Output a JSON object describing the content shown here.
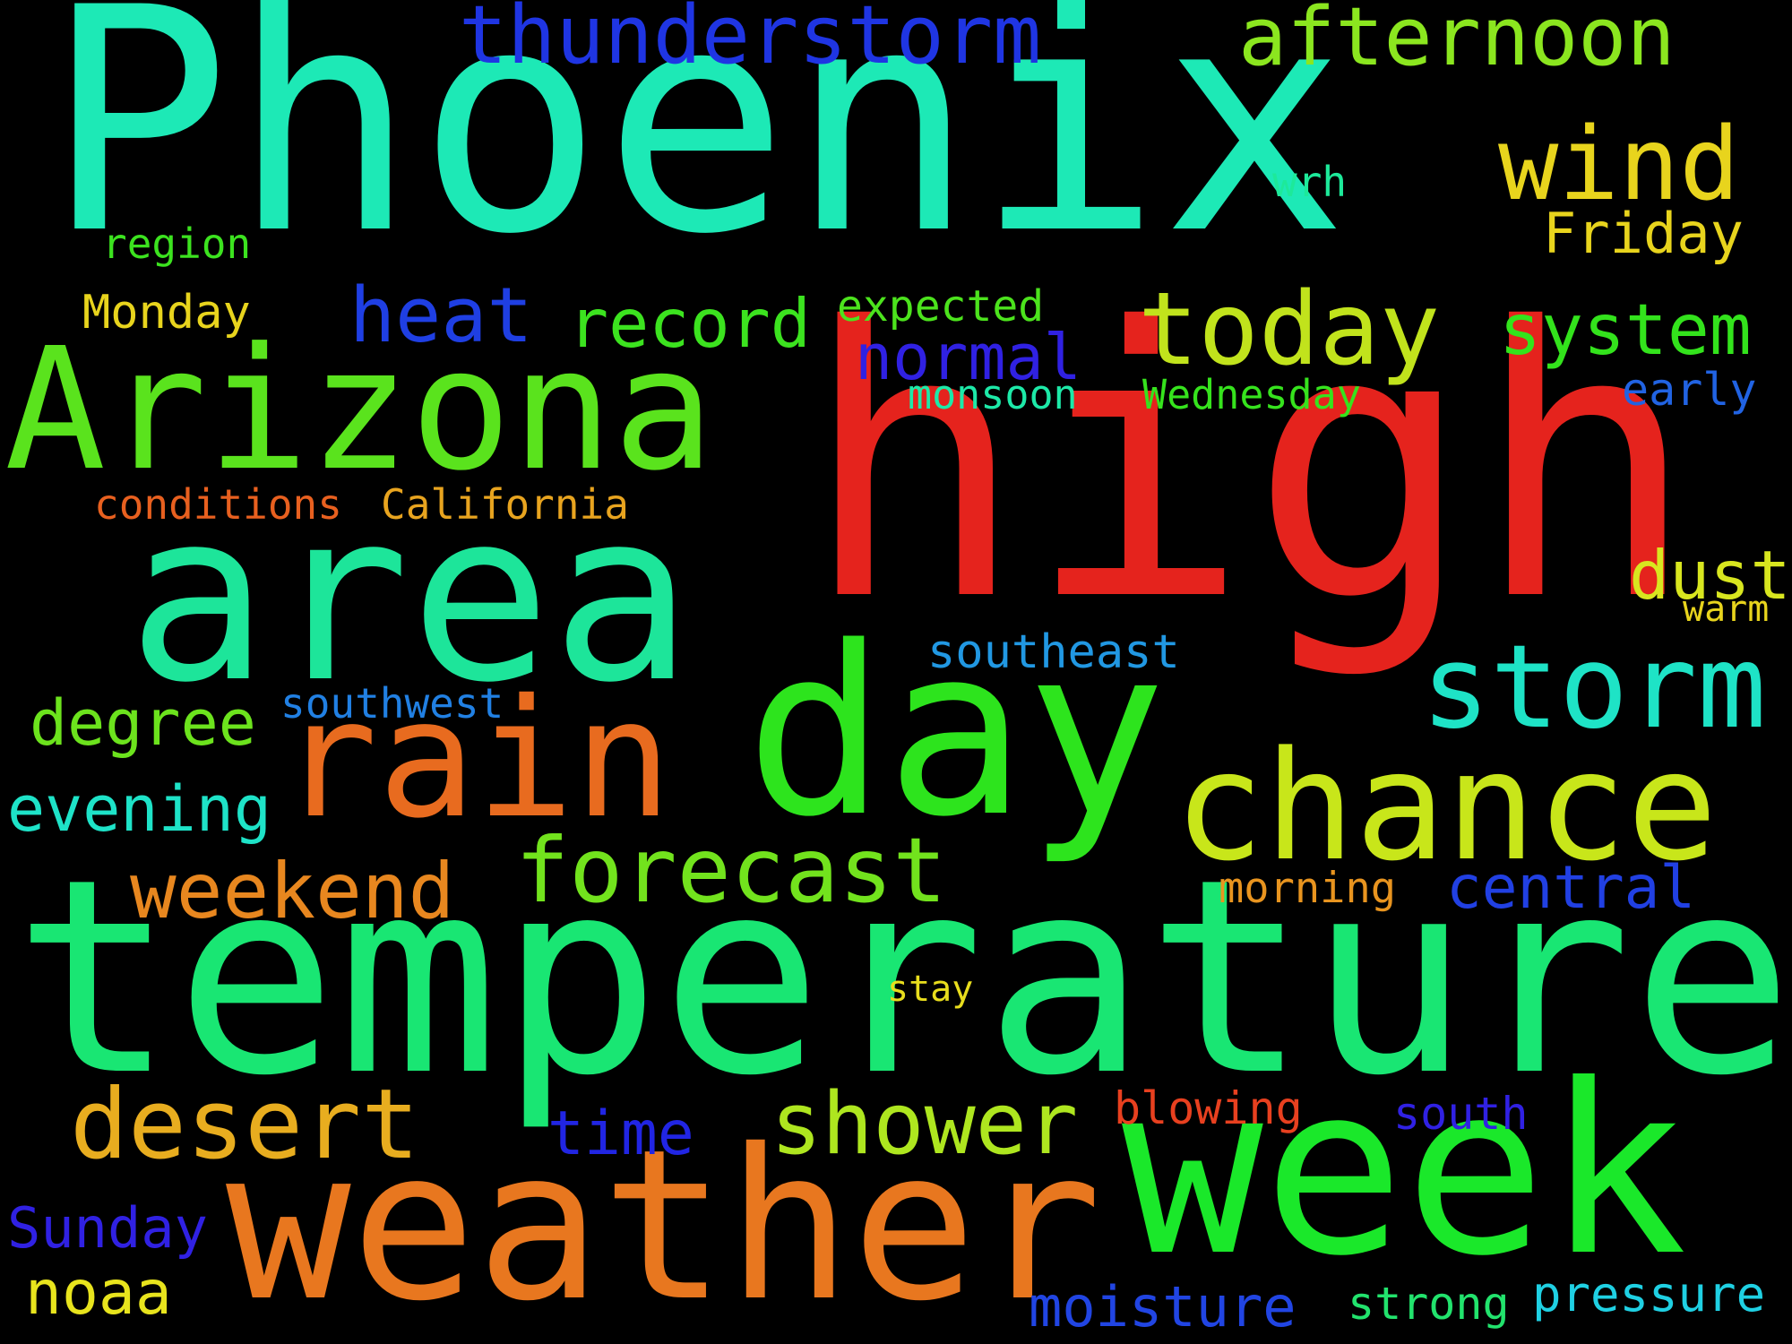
{
  "words": [
    {
      "id": "phoenix",
      "text": "Phoenix",
      "color": "#1de9b6"
    },
    {
      "id": "high",
      "text": "high",
      "color": "#e5231d"
    },
    {
      "id": "temperature",
      "text": "temperature",
      "color": "#19e673"
    },
    {
      "id": "week",
      "text": "week",
      "color": "#1ae82a"
    },
    {
      "id": "weather",
      "text": "weather",
      "color": "#e8771f"
    },
    {
      "id": "area",
      "text": "area",
      "color": "#1de59a"
    },
    {
      "id": "day",
      "text": "day",
      "color": "#2de41d"
    },
    {
      "id": "arizona",
      "text": "Arizona",
      "color": "#5ae31d"
    },
    {
      "id": "rain",
      "text": "rain",
      "color": "#e86b1f"
    },
    {
      "id": "chance",
      "text": "chance",
      "color": "#c8e61a"
    },
    {
      "id": "storm",
      "text": "storm",
      "color": "#1ee3c6"
    },
    {
      "id": "today",
      "text": "today",
      "color": "#c1e31c"
    },
    {
      "id": "wind",
      "text": "wind",
      "color": "#e8d41d"
    },
    {
      "id": "thunderstorm",
      "text": "thunderstorm",
      "color": "#1f35e3"
    },
    {
      "id": "afternoon",
      "text": "afternoon",
      "color": "#8be61f"
    },
    {
      "id": "heat",
      "text": "heat",
      "color": "#1f3fe3"
    },
    {
      "id": "record",
      "text": "record",
      "color": "#3ce31f"
    },
    {
      "id": "system",
      "text": "system",
      "color": "#33e31c"
    },
    {
      "id": "forecast",
      "text": "forecast",
      "color": "#72e31d"
    },
    {
      "id": "weekend",
      "text": "weekend",
      "color": "#e8871f"
    },
    {
      "id": "desert",
      "text": "desert",
      "color": "#e8ad1f"
    },
    {
      "id": "shower",
      "text": "shower",
      "color": "#aee61f"
    },
    {
      "id": "degree",
      "text": "degree",
      "color": "#6ce31d"
    },
    {
      "id": "evening",
      "text": "evening",
      "color": "#1ee3c8"
    },
    {
      "id": "dust",
      "text": "dust",
      "color": "#d8e61f"
    },
    {
      "id": "normal",
      "text": "normal",
      "color": "#3021e3"
    },
    {
      "id": "central",
      "text": "central",
      "color": "#2140e3"
    },
    {
      "id": "friday",
      "text": "Friday",
      "color": "#e8d41d"
    },
    {
      "id": "monday",
      "text": "Monday",
      "color": "#e8d41d"
    },
    {
      "id": "expected",
      "text": "expected",
      "color": "#4ce31d"
    },
    {
      "id": "region",
      "text": "region",
      "color": "#3ce31f"
    },
    {
      "id": "wrh",
      "text": "wrh",
      "color": "#1de99a"
    },
    {
      "id": "early",
      "text": "early",
      "color": "#2163e3"
    },
    {
      "id": "monsoon",
      "text": "monsoon",
      "color": "#1de9a8"
    },
    {
      "id": "wednesday",
      "text": "Wednesday",
      "color": "#36e31d"
    },
    {
      "id": "conditions",
      "text": "conditions",
      "color": "#e8601f"
    },
    {
      "id": "california",
      "text": "California",
      "color": "#e8a41f"
    },
    {
      "id": "warm",
      "text": "warm",
      "color": "#e8d41d"
    },
    {
      "id": "southeast",
      "text": "southeast",
      "color": "#2198e3"
    },
    {
      "id": "southwest",
      "text": "southwest",
      "color": "#2180e3"
    },
    {
      "id": "morning",
      "text": "morning",
      "color": "#e8941f"
    },
    {
      "id": "stay",
      "text": "stay",
      "color": "#e8dd1d"
    },
    {
      "id": "time",
      "text": "time",
      "color": "#2125e3"
    },
    {
      "id": "blowing",
      "text": "blowing",
      "color": "#e8401f"
    },
    {
      "id": "south",
      "text": "south",
      "color": "#3021e3"
    },
    {
      "id": "sunday",
      "text": "Sunday",
      "color": "#3021e3"
    },
    {
      "id": "noaa",
      "text": "noaa",
      "color": "#e8e41d"
    },
    {
      "id": "moisture",
      "text": "moisture",
      "color": "#2145e3"
    },
    {
      "id": "strong",
      "text": "strong",
      "color": "#22e36d"
    },
    {
      "id": "pressure",
      "text": "pressure",
      "color": "#1fd0e3"
    }
  ]
}
